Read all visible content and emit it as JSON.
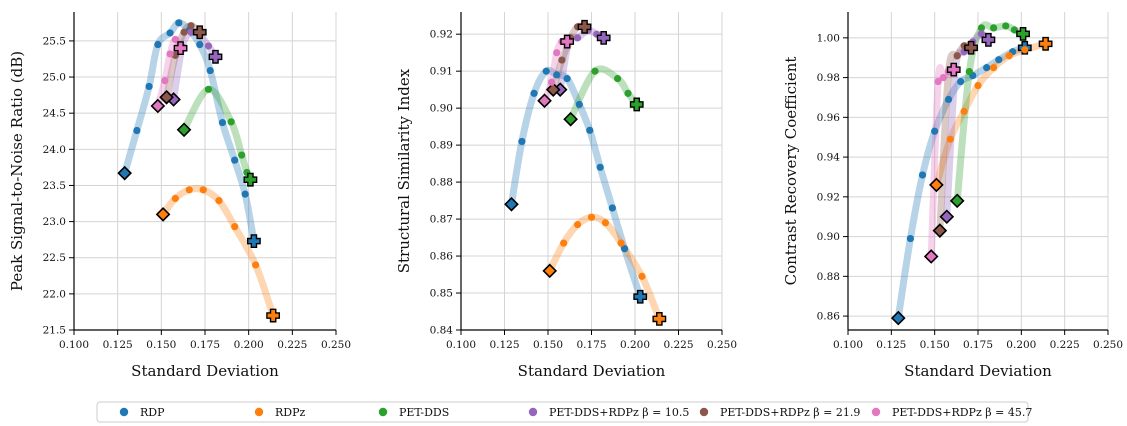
{
  "colors": {
    "RDP": "#1f77b4",
    "RDPz": "#ff7f0e",
    "PET-DDS": "#2ca02c",
    "PET-DDS+RDPz b10.5": "#9467bd",
    "PET-DDS+RDPz b21.9": "#8c564b",
    "PET-DDS+RDPz b45.7": "#e377c2"
  },
  "legend": [
    {
      "label": "RDP",
      "key": "RDP"
    },
    {
      "label": "RDPz",
      "key": "RDPz"
    },
    {
      "label": "PET-DDS",
      "key": "PET-DDS"
    },
    {
      "label": "PET-DDS+RDPz β = 10.5",
      "key": "PET-DDS+RDPz b10.5"
    },
    {
      "label": "PET-DDS+RDPz β = 21.9",
      "key": "PET-DDS+RDPz b21.9"
    },
    {
      "label": "PET-DDS+RDPz β = 45.7",
      "key": "PET-DDS+RDPz b45.7"
    }
  ],
  "chart_data": [
    {
      "type": "line",
      "xlabel": "Standard Deviation",
      "ylabel": "Peak Signal-to-Noise Ratio (dB)",
      "xlim": [
        0.1,
        0.25
      ],
      "ylim": [
        21.5,
        25.9
      ],
      "xticks": [
        "0.100",
        "0.125",
        "0.150",
        "0.175",
        "0.200",
        "0.225",
        "0.250"
      ],
      "yticks": [
        "21.5",
        "22.0",
        "22.5",
        "23.0",
        "23.5",
        "24.0",
        "24.5",
        "25.0",
        "25.5"
      ],
      "grid": true,
      "series": [
        {
          "name": "RDP",
          "key": "RDP",
          "x": [
            0.129,
            0.136,
            0.143,
            0.148,
            0.155,
            0.16,
            0.166,
            0.172,
            0.178,
            0.185,
            0.192,
            0.198,
            0.203
          ],
          "y": [
            23.67,
            24.26,
            24.87,
            25.45,
            25.61,
            25.75,
            25.65,
            25.45,
            25.09,
            24.37,
            23.85,
            23.38,
            22.73
          ]
        },
        {
          "name": "RDPz",
          "key": "RDPz",
          "x": [
            0.151,
            0.158,
            0.166,
            0.174,
            0.183,
            0.192,
            0.204,
            0.214
          ],
          "y": [
            23.1,
            23.32,
            23.44,
            23.44,
            23.29,
            22.93,
            22.4,
            21.7
          ]
        },
        {
          "name": "PET-DDS",
          "key": "PET-DDS",
          "x": [
            0.163,
            0.177,
            0.19,
            0.196,
            0.199,
            0.201
          ],
          "y": [
            24.27,
            24.83,
            24.38,
            23.92,
            23.68,
            23.58
          ]
        },
        {
          "name": "PET-DDS+RDPz β = 10.5",
          "key": "PET-DDS+RDPz b10.5",
          "x": [
            0.157,
            0.162,
            0.167,
            0.172,
            0.177,
            0.181
          ],
          "y": [
            24.69,
            25.42,
            25.62,
            25.58,
            25.43,
            25.28
          ]
        },
        {
          "name": "PET-DDS+RDPz β = 21.9",
          "key": "PET-DDS+RDPz b21.9",
          "x": [
            0.153,
            0.158,
            0.163,
            0.167,
            0.172
          ],
          "y": [
            24.72,
            25.3,
            25.62,
            25.71,
            25.62
          ]
        },
        {
          "name": "PET-DDS+RDPz β = 45.7",
          "key": "PET-DDS+RDPz b45.7",
          "x": [
            0.148,
            0.152,
            0.155,
            0.158,
            0.161
          ],
          "y": [
            24.6,
            24.95,
            25.32,
            25.52,
            25.4
          ]
        }
      ]
    },
    {
      "type": "line",
      "xlabel": "Standard Deviation",
      "ylabel": "Structural Similarity Index",
      "xlim": [
        0.1,
        0.25
      ],
      "ylim": [
        0.84,
        0.926
      ],
      "xticks": [
        "0.100",
        "0.125",
        "0.150",
        "0.175",
        "0.200",
        "0.225",
        "0.250"
      ],
      "yticks": [
        "0.84",
        "0.85",
        "0.86",
        "0.87",
        "0.88",
        "0.89",
        "0.90",
        "0.91",
        "0.92"
      ],
      "grid": true,
      "series": [
        {
          "name": "RDP",
          "key": "RDP",
          "x": [
            0.129,
            0.135,
            0.142,
            0.149,
            0.155,
            0.161,
            0.168,
            0.174,
            0.18,
            0.187,
            0.194,
            0.203
          ],
          "y": [
            0.874,
            0.891,
            0.904,
            0.91,
            0.909,
            0.908,
            0.901,
            0.894,
            0.884,
            0.873,
            0.862,
            0.849
          ]
        },
        {
          "name": "RDPz",
          "key": "RDPz",
          "x": [
            0.151,
            0.159,
            0.167,
            0.175,
            0.183,
            0.192,
            0.204,
            0.214
          ],
          "y": [
            0.856,
            0.8635,
            0.8685,
            0.8705,
            0.869,
            0.8635,
            0.8545,
            0.843
          ]
        },
        {
          "name": "PET-DDS",
          "key": "PET-DDS",
          "x": [
            0.163,
            0.177,
            0.19,
            0.196,
            0.201
          ],
          "y": [
            0.897,
            0.91,
            0.908,
            0.904,
            0.901
          ]
        },
        {
          "name": "PET-DDS+RDPz β = 10.5",
          "key": "PET-DDS+RDPz b10.5",
          "x": [
            0.157,
            0.162,
            0.167,
            0.173,
            0.178,
            0.182
          ],
          "y": [
            0.905,
            0.918,
            0.919,
            0.921,
            0.92,
            0.919
          ]
        },
        {
          "name": "PET-DDS+RDPz β = 21.9",
          "key": "PET-DDS+RDPz b21.9",
          "x": [
            0.153,
            0.158,
            0.163,
            0.167,
            0.171
          ],
          "y": [
            0.905,
            0.913,
            0.919,
            0.922,
            0.922
          ]
        },
        {
          "name": "PET-DDS+RDPz β = 45.7",
          "key": "PET-DDS+RDPz b45.7",
          "x": [
            0.148,
            0.152,
            0.155,
            0.158,
            0.161
          ],
          "y": [
            0.902,
            0.907,
            0.915,
            0.918,
            0.918
          ]
        }
      ]
    },
    {
      "type": "line",
      "xlabel": "Standard Deviation",
      "ylabel": "Contrast Recovery Coefficient",
      "xlim": [
        0.1,
        0.25
      ],
      "ylim": [
        0.853,
        1.013
      ],
      "xticks": [
        "0.100",
        "0.125",
        "0.150",
        "0.175",
        "0.200",
        "0.225",
        "0.250"
      ],
      "yticks": [
        "0.86",
        "0.88",
        "0.90",
        "0.92",
        "0.94",
        "0.96",
        "0.98",
        "1.00"
      ],
      "grid": true,
      "series": [
        {
          "name": "RDP",
          "key": "RDP",
          "x": [
            0.129,
            0.136,
            0.143,
            0.15,
            0.158,
            0.165,
            0.172,
            0.18,
            0.187,
            0.195,
            0.202
          ],
          "y": [
            0.859,
            0.899,
            0.931,
            0.953,
            0.969,
            0.978,
            0.981,
            0.985,
            0.989,
            0.993,
            0.995
          ]
        },
        {
          "name": "RDPz",
          "key": "RDPz",
          "x": [
            0.151,
            0.159,
            0.167,
            0.175,
            0.184,
            0.193,
            0.202,
            0.214
          ],
          "y": [
            0.926,
            0.949,
            0.963,
            0.976,
            0.985,
            0.991,
            0.994,
            0.997
          ]
        },
        {
          "name": "PET-DDS",
          "key": "PET-DDS",
          "x": [
            0.163,
            0.17,
            0.177,
            0.184,
            0.191,
            0.196,
            0.201
          ],
          "y": [
            0.918,
            0.983,
            1.005,
            1.005,
            1.006,
            1.004,
            1.002
          ]
        },
        {
          "name": "PET-DDS+RDPz β = 10.5",
          "key": "PET-DDS+RDPz b10.5",
          "x": [
            0.157,
            0.162,
            0.167,
            0.172,
            0.177,
            0.181
          ],
          "y": [
            0.91,
            0.984,
            0.993,
            0.998,
            1.002,
            0.999
          ]
        },
        {
          "name": "PET-DDS+RDPz β = 21.9",
          "key": "PET-DDS+RDPz b21.9",
          "x": [
            0.153,
            0.158,
            0.163,
            0.167,
            0.171
          ],
          "y": [
            0.903,
            0.983,
            0.991,
            0.996,
            0.995
          ]
        },
        {
          "name": "PET-DDS+RDPz β = 45.7",
          "key": "PET-DDS+RDPz b45.7",
          "x": [
            0.148,
            0.152,
            0.155,
            0.158,
            0.161
          ],
          "y": [
            0.89,
            0.978,
            0.98,
            0.983,
            0.984
          ]
        }
      ]
    }
  ]
}
